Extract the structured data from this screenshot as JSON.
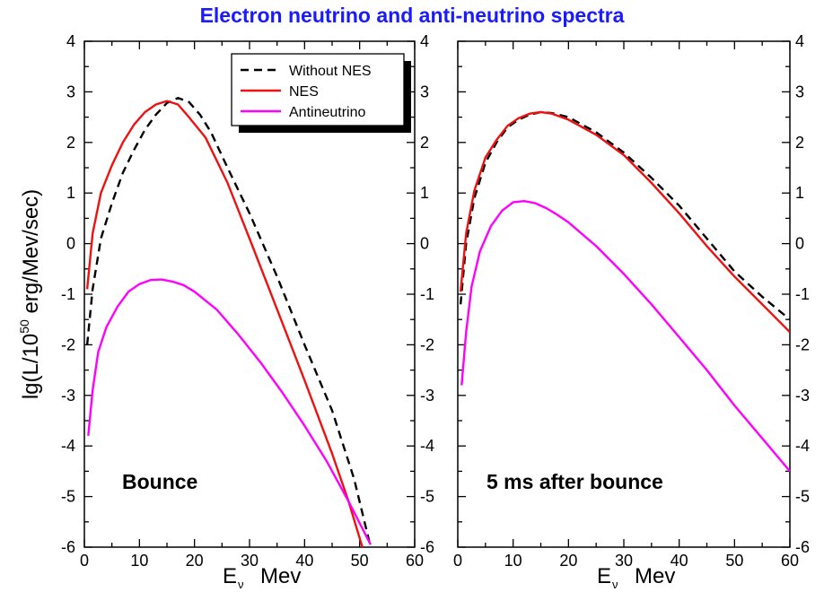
{
  "title": "Electron neutrino and anti-neutrino spectra",
  "colors": {
    "title": "#1a1aff",
    "without_nes": "#000000",
    "nes": "#ee1111",
    "antineutrino": "#ff00ff"
  },
  "chart_data": [
    {
      "type": "line",
      "panel_label": "Bounce",
      "xlabel_main": "E",
      "xlabel_sub": "ν",
      "xlabel_unit": "Mev",
      "ylabel": "lg(L/10^50 erg/Mev/sec)",
      "xlim": [
        0,
        60
      ],
      "ylim": [
        -6,
        4
      ],
      "x_ticks": [
        "0",
        "10",
        "20",
        "30",
        "40",
        "50",
        "60"
      ],
      "y_ticks": [
        "-6",
        "-5",
        "-4",
        "-3",
        "-2",
        "-1",
        "0",
        "1",
        "2",
        "3",
        "4"
      ],
      "legend": {
        "position": "top-right",
        "entries": [
          "Without NES",
          "NES",
          "Antineutrino"
        ]
      },
      "series": [
        {
          "name": "Without NES",
          "style": "dashed",
          "color": "#000000",
          "x": [
            0.5,
            1.5,
            3,
            5,
            7,
            9,
            11,
            13,
            15,
            17,
            19,
            21,
            23,
            26,
            30,
            35,
            40,
            45,
            49,
            52
          ],
          "y": [
            -2.0,
            -0.9,
            0.1,
            0.8,
            1.4,
            1.85,
            2.25,
            2.55,
            2.78,
            2.88,
            2.8,
            2.55,
            2.2,
            1.5,
            0.6,
            -0.65,
            -2.0,
            -3.3,
            -4.65,
            -6.0
          ]
        },
        {
          "name": "NES",
          "style": "solid",
          "color": "#ee1111",
          "x": [
            0.5,
            1.5,
            3,
            5,
            7,
            9,
            11,
            13,
            15,
            17,
            19,
            22,
            26,
            30,
            35,
            40,
            45,
            48,
            50.5
          ],
          "y": [
            -0.9,
            0.2,
            1.0,
            1.55,
            2.0,
            2.35,
            2.6,
            2.75,
            2.82,
            2.75,
            2.5,
            2.1,
            1.2,
            0.1,
            -1.3,
            -2.7,
            -4.15,
            -5.1,
            -6.0
          ]
        },
        {
          "name": "Antineutrino",
          "style": "solid",
          "color": "#ff00ff",
          "x": [
            0.7,
            1.5,
            2.5,
            4,
            6,
            8,
            10,
            12,
            14,
            16,
            18,
            20,
            24,
            28,
            32,
            36,
            40,
            44,
            48,
            52
          ],
          "y": [
            -3.8,
            -2.9,
            -2.15,
            -1.65,
            -1.25,
            -0.95,
            -0.8,
            -0.72,
            -0.71,
            -0.75,
            -0.82,
            -0.95,
            -1.3,
            -1.8,
            -2.35,
            -2.95,
            -3.6,
            -4.3,
            -5.1,
            -5.95
          ]
        }
      ]
    },
    {
      "type": "line",
      "panel_label": "5 ms after bounce",
      "xlabel_main": "E",
      "xlabel_sub": "ν",
      "xlabel_unit": "Mev",
      "xlim": [
        0,
        60
      ],
      "ylim": [
        -6,
        4
      ],
      "x_ticks": [
        "0",
        "10",
        "20",
        "30",
        "40",
        "50",
        "60"
      ],
      "y_ticks": [
        "-6",
        "-5",
        "-4",
        "-3",
        "-2",
        "-1",
        "0",
        "1",
        "2",
        "3",
        "4"
      ],
      "series": [
        {
          "name": "Without NES",
          "style": "dashed",
          "color": "#000000",
          "x": [
            0.5,
            1.5,
            3,
            5,
            7,
            9,
            11,
            13,
            15,
            17,
            20,
            25,
            30,
            35,
            40,
            45,
            50,
            55,
            60
          ],
          "y": [
            -1.2,
            0.0,
            0.9,
            1.6,
            2.0,
            2.3,
            2.45,
            2.55,
            2.6,
            2.58,
            2.5,
            2.2,
            1.8,
            1.3,
            0.75,
            0.1,
            -0.55,
            -1.05,
            -1.5
          ]
        },
        {
          "name": "NES",
          "style": "solid",
          "color": "#ee1111",
          "x": [
            0.5,
            1.5,
            3,
            5,
            7,
            9,
            11,
            13,
            15,
            17,
            20,
            25,
            30,
            35,
            40,
            45,
            50,
            55,
            60
          ],
          "y": [
            -0.95,
            0.2,
            1.05,
            1.7,
            2.05,
            2.33,
            2.48,
            2.57,
            2.6,
            2.57,
            2.45,
            2.15,
            1.75,
            1.2,
            0.6,
            -0.05,
            -0.65,
            -1.2,
            -1.75
          ]
        },
        {
          "name": "Antineutrino",
          "style": "solid",
          "color": "#ff00ff",
          "x": [
            0.7,
            1.5,
            2.5,
            4,
            6,
            8,
            10,
            12,
            14,
            16,
            18,
            20,
            25,
            30,
            35,
            40,
            45,
            50,
            55,
            60
          ],
          "y": [
            -2.8,
            -1.75,
            -0.85,
            -0.15,
            0.35,
            0.65,
            0.82,
            0.84,
            0.8,
            0.7,
            0.57,
            0.42,
            -0.05,
            -0.6,
            -1.2,
            -1.85,
            -2.5,
            -3.2,
            -3.85,
            -4.5
          ]
        }
      ]
    }
  ]
}
